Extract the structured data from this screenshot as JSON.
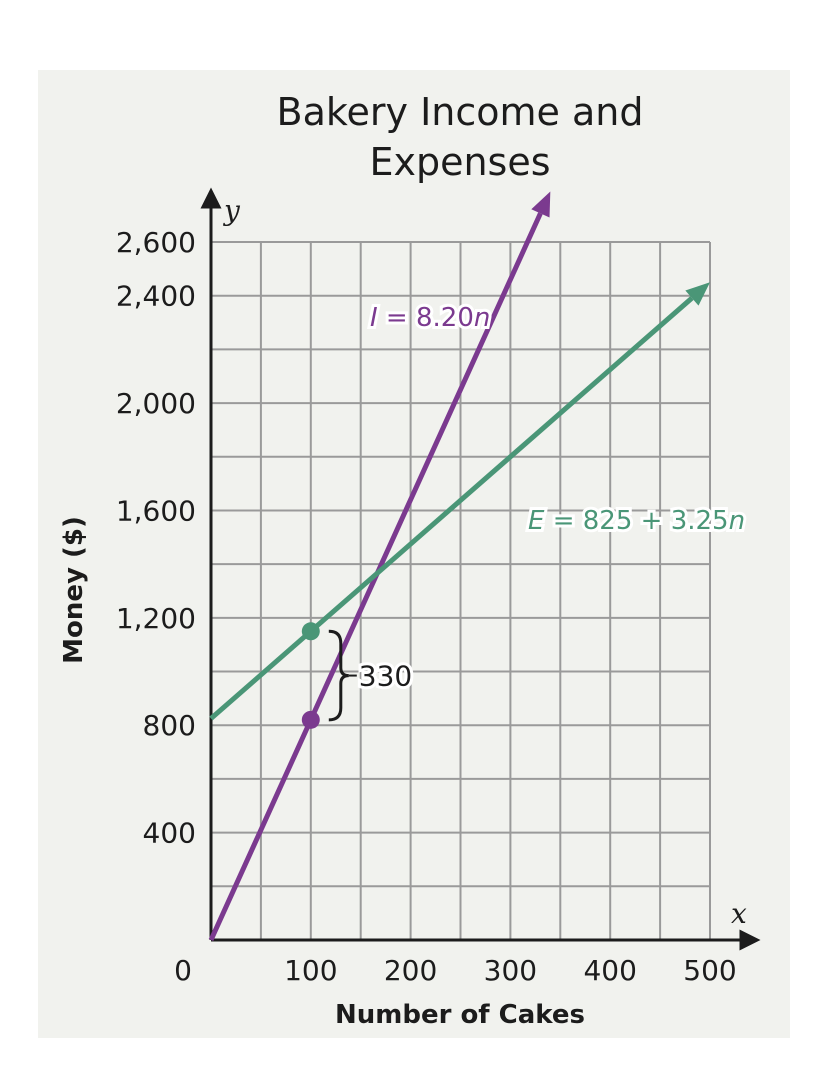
{
  "chart_data": {
    "type": "line",
    "title_lines": [
      "Bakery Income and",
      "Expenses"
    ],
    "xlabel": "Number of Cakes",
    "ylabel": "Money ($)",
    "x_axis_var": "x",
    "y_axis_var": "y",
    "xlim": [
      0,
      500
    ],
    "ylim": [
      0,
      2600
    ],
    "x_ticks": [
      {
        "value": 0,
        "label": "0"
      },
      {
        "value": 100,
        "label": "100"
      },
      {
        "value": 200,
        "label": "200"
      },
      {
        "value": 300,
        "label": "300"
      },
      {
        "value": 400,
        "label": "400"
      },
      {
        "value": 500,
        "label": "500"
      }
    ],
    "y_ticks": [
      {
        "value": 400,
        "label": "400"
      },
      {
        "value": 800,
        "label": "800"
      },
      {
        "value": 1200,
        "label": "1,200"
      },
      {
        "value": 1600,
        "label": "1,600"
      },
      {
        "value": 2000,
        "label": "2,000"
      },
      {
        "value": 2400,
        "label": "2,400"
      },
      {
        "value": 2600,
        "label": "2,600"
      }
    ],
    "grid": true,
    "series": [
      {
        "var": "I",
        "label_rest": " = 8.20",
        "label_end": "n",
        "slope": 8.2,
        "intercept": 0,
        "x_range": [
          0,
          340
        ],
        "color": "#7b3a8f"
      },
      {
        "var": "E",
        "label_rest": " = 825 + 3.25",
        "label_end": "n",
        "slope": 3.25,
        "intercept": 825,
        "x_range": [
          0,
          500
        ],
        "color": "#4a9677"
      }
    ],
    "points": [
      {
        "x": 100,
        "y": 1150,
        "color": "#4a9677"
      },
      {
        "x": 100,
        "y": 820,
        "color": "#7b3a8f"
      }
    ],
    "annotation": {
      "text": "330",
      "x": 100,
      "y_low": 820,
      "y_high": 1150
    }
  }
}
